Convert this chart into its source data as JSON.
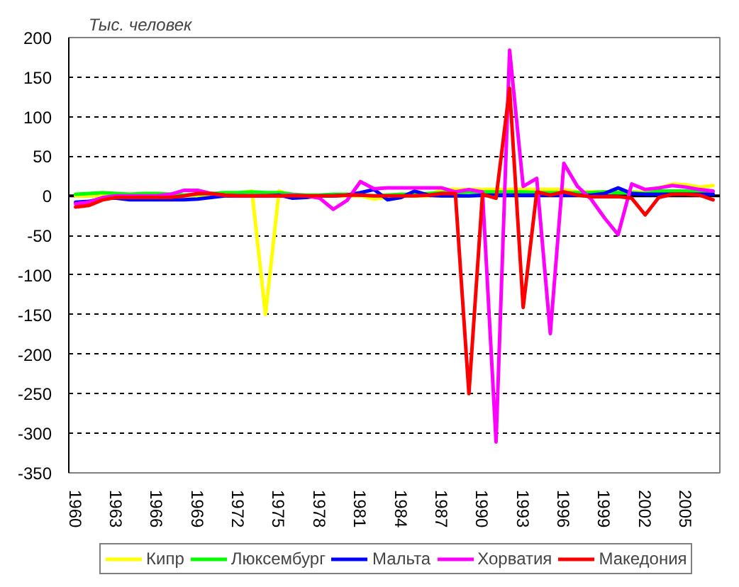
{
  "chart_data": {
    "type": "line",
    "ylabel": "Тыс. человек",
    "x": [
      1960,
      1961,
      1962,
      1963,
      1964,
      1965,
      1966,
      1967,
      1968,
      1969,
      1970,
      1971,
      1972,
      1973,
      1974,
      1975,
      1976,
      1977,
      1978,
      1979,
      1980,
      1981,
      1982,
      1983,
      1984,
      1985,
      1986,
      1987,
      1988,
      1989,
      1990,
      1991,
      1992,
      1993,
      1994,
      1995,
      1996,
      1997,
      1998,
      1999,
      2000,
      2001,
      2002,
      2003,
      2004,
      2005,
      2006,
      2007
    ],
    "xlim": [
      1959.5,
      2007.5
    ],
    "xticks": [
      1960,
      1963,
      1966,
      1969,
      1972,
      1975,
      1978,
      1981,
      1984,
      1987,
      1990,
      1993,
      1996,
      1999,
      2002,
      2005
    ],
    "ylim": [
      -350,
      200
    ],
    "yticks": [
      -350,
      -300,
      -250,
      -200,
      -150,
      -100,
      -50,
      0,
      50,
      100,
      150,
      200
    ],
    "grid": "y",
    "legend": "bottom",
    "line_style": "solid",
    "ref_lines": [
      {
        "axis": "y",
        "value": 0,
        "color": "#000000"
      }
    ],
    "series": [
      {
        "name": "Кипр",
        "color": "#ffff00",
        "values": [
          0,
          0,
          0,
          0,
          0,
          0,
          0,
          0,
          0,
          0,
          0,
          0,
          3,
          6,
          -150,
          6,
          0,
          0,
          0,
          0,
          0,
          0,
          -4,
          -2,
          0,
          0,
          0,
          8,
          8,
          8,
          8,
          8,
          8,
          8,
          8,
          8,
          8,
          5,
          5,
          5,
          5,
          5,
          5,
          10,
          15,
          14,
          11,
          13
        ]
      },
      {
        "name": "Люксембург",
        "color": "#00ff00",
        "values": [
          2,
          3,
          4,
          3,
          2,
          3,
          3,
          2,
          1,
          2,
          3,
          4,
          4,
          5,
          4,
          4,
          2,
          1,
          1,
          2,
          2,
          1,
          0,
          1,
          2,
          2,
          3,
          4,
          4,
          5,
          5,
          5,
          5,
          5,
          4,
          4,
          4,
          4,
          4,
          5,
          4,
          4,
          3,
          6,
          6,
          6,
          5,
          5
        ]
      },
      {
        "name": "Мальта",
        "color": "#0000ff",
        "values": [
          -8,
          -7,
          -3,
          -3,
          -5,
          -5,
          -5,
          -5,
          -5,
          -4,
          -2,
          0,
          0,
          0,
          0,
          1,
          -3,
          -2,
          0,
          0,
          1,
          4,
          8,
          -5,
          -2,
          6,
          1,
          0,
          0,
          0,
          1,
          1,
          1,
          1,
          1,
          1,
          1,
          1,
          1,
          3,
          10,
          3,
          2,
          2,
          2,
          2,
          2,
          2
        ]
      },
      {
        "name": "Хорватия",
        "color": "#ff00ff",
        "values": [
          -10,
          -8,
          -2,
          0,
          0,
          0,
          0,
          2,
          7,
          7,
          3,
          1,
          0,
          0,
          0,
          0,
          1,
          0,
          -3,
          -17,
          -6,
          18,
          9,
          10,
          10,
          10,
          10,
          10,
          5,
          8,
          5,
          -311,
          184,
          12,
          22,
          -174,
          41,
          12,
          -4,
          -28,
          -49,
          15,
          8,
          10,
          13,
          11,
          8,
          6
        ]
      },
      {
        "name": "Македония",
        "color": "#ff0000",
        "values": [
          -14,
          -12,
          -5,
          -2,
          -2,
          -2,
          -2,
          -2,
          0,
          3,
          3,
          1,
          0,
          0,
          0,
          0,
          0,
          0,
          0,
          0,
          1,
          1,
          0,
          0,
          0,
          0,
          1,
          3,
          3,
          -250,
          2,
          -3,
          136,
          -141,
          5,
          1,
          5,
          1,
          -1,
          -1,
          -1,
          -3,
          -24,
          -2,
          2,
          2,
          1,
          -5
        ]
      }
    ]
  }
}
